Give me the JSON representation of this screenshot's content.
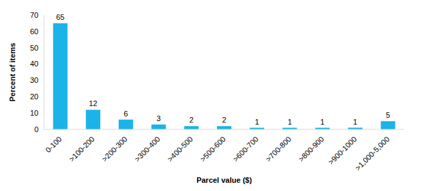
{
  "chart_data": {
    "type": "bar",
    "categories": [
      "0-100",
      ">100-200",
      ">200-300",
      ">300-400",
      ">400-500",
      ">500-600",
      ">600-700",
      ">700-800",
      ">800-900",
      ">900-1000",
      ">1,000-5,000"
    ],
    "values": [
      65,
      12,
      6,
      3,
      2,
      2,
      1,
      1,
      1,
      1,
      5
    ],
    "color": "#1cb3e8",
    "x_label": "Parcel value ($)",
    "y_label": "Percent of items",
    "ylim": [
      0,
      70
    ],
    "yticks": [
      0,
      10,
      20,
      30,
      40,
      50,
      60,
      70
    ],
    "grid": false,
    "data_labels": true
  }
}
